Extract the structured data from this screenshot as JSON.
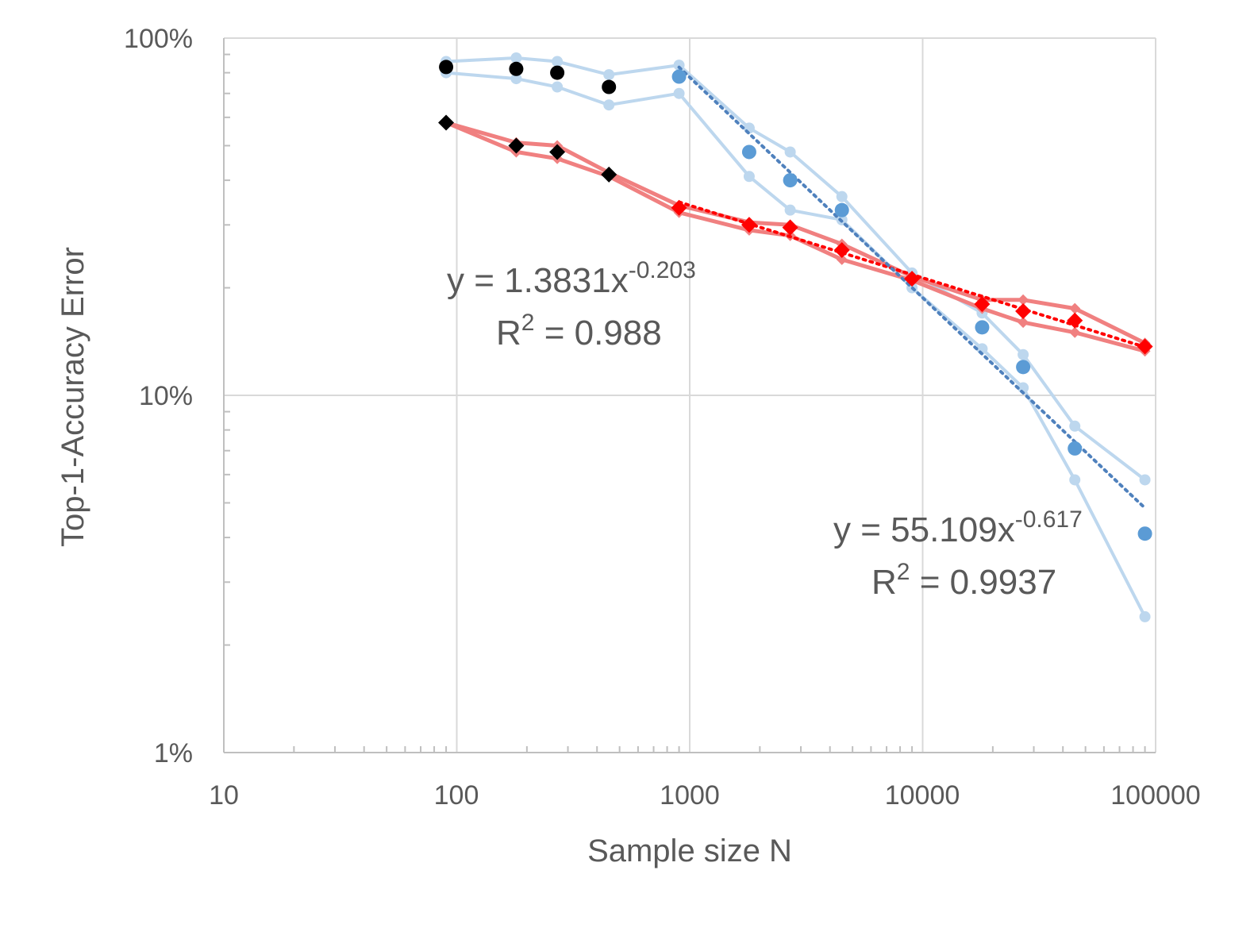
{
  "chart_data": {
    "type": "scatter",
    "title": "",
    "xlabel": "Sample size N",
    "ylabel": "Top-1-Accuracy Error",
    "xscale": "log",
    "yscale": "log",
    "xlim": [
      10,
      100000
    ],
    "ylim": [
      1,
      100
    ],
    "grid": true,
    "x_tick_labels": [
      "10",
      "100",
      "1000",
      "10000",
      "100000"
    ],
    "y_tick_labels": [
      "100%",
      "10%",
      "1%"
    ],
    "series": [
      {
        "name": "blue-upper",
        "role": "band",
        "color": "#bdd7ee",
        "x": [
          90,
          180,
          270,
          450,
          900,
          1800,
          2700,
          4500,
          9000,
          18000,
          27000,
          45000,
          90000
        ],
        "y": [
          86,
          88,
          86,
          79,
          84,
          56,
          48,
          36,
          22,
          17,
          13,
          8.2,
          5.8
        ]
      },
      {
        "name": "blue-lower",
        "role": "band",
        "color": "#bdd7ee",
        "x": [
          90,
          180,
          270,
          450,
          900,
          1800,
          2700,
          4500,
          9000,
          18000,
          27000,
          45000,
          90000
        ],
        "y": [
          80,
          77,
          73,
          65,
          70,
          41,
          33,
          31,
          20,
          13.5,
          10.5,
          5.8,
          2.4
        ]
      },
      {
        "name": "blue-mean",
        "role": "points",
        "color": "#5b9bd5",
        "x": [
          900,
          1800,
          2700,
          4500,
          18000,
          27000,
          45000,
          90000
        ],
        "y": [
          78,
          48,
          40,
          33,
          15.5,
          12,
          7.1,
          4.1
        ]
      },
      {
        "name": "black-circles",
        "role": "points",
        "color": "#000000",
        "x": [
          90,
          180,
          270,
          450
        ],
        "y": [
          83,
          82,
          80,
          73
        ]
      },
      {
        "name": "red-upper",
        "role": "band",
        "color": "#f08080",
        "x": [
          90,
          180,
          270,
          450,
          900,
          1800,
          2700,
          4500,
          9000,
          18000,
          27000,
          45000,
          90000
        ],
        "y": [
          58,
          51,
          50,
          42,
          34,
          30.5,
          30,
          26.5,
          21.5,
          18.5,
          18.5,
          17.5,
          14
        ]
      },
      {
        "name": "red-lower",
        "role": "band",
        "color": "#f08080",
        "x": [
          90,
          180,
          270,
          450,
          900,
          1800,
          2700,
          4500,
          9000,
          18000,
          27000,
          45000,
          90000
        ],
        "y": [
          58,
          48,
          46,
          41,
          32.5,
          29,
          28,
          24,
          21,
          17.5,
          16,
          15,
          13.3
        ]
      },
      {
        "name": "red-mean",
        "role": "points",
        "color": "#ff0000",
        "x": [
          900,
          1800,
          2700,
          4500,
          9000,
          18000,
          27000,
          45000,
          90000
        ],
        "y": [
          33.5,
          30,
          29.5,
          25.5,
          21.2,
          18,
          17.2,
          16.2,
          13.7
        ]
      },
      {
        "name": "black-diamonds",
        "role": "points",
        "color": "#000000",
        "x": [
          90,
          180,
          270,
          450
        ],
        "y": [
          58,
          50,
          48,
          41.5
        ]
      }
    ],
    "fits": [
      {
        "name": "red-fit",
        "color": "#ff0000",
        "a": 1.3831,
        "b": -0.203,
        "x_range": [
          900,
          90000
        ],
        "scale": 100
      },
      {
        "name": "blue-fit",
        "color": "#4f81bd",
        "a": 55.109,
        "b": -0.617,
        "x_range": [
          900,
          90000
        ],
        "scale": 100
      }
    ],
    "annotations": [
      {
        "name": "red-fit-equation",
        "eq_base": "y = 1.3831x",
        "eq_exp": "-0.203",
        "r2_base": "R",
        "r2_sup": "2",
        "r2_value": " = 0.988",
        "position": "upper-left"
      },
      {
        "name": "blue-fit-equation",
        "eq_base": "y = 55.109x",
        "eq_exp": "-0.617",
        "r2_base": "R",
        "r2_sup": "2",
        "r2_value": " = 0.9937",
        "position": "lower-right"
      }
    ]
  }
}
